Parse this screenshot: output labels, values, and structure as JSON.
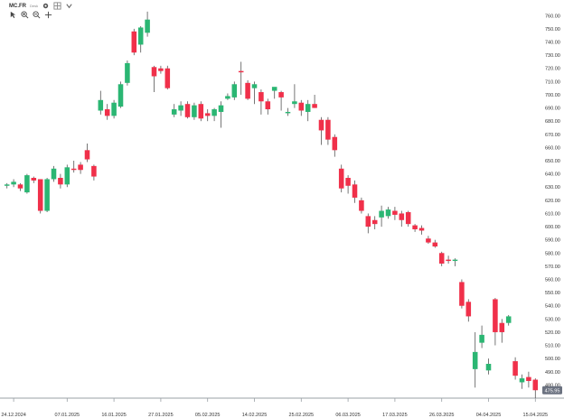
{
  "toolbar": {
    "symbol": "MC.FR",
    "sub_label": "Desk",
    "icons": [
      "cursor-icon",
      "zoom-in-icon",
      "zoom-out-icon",
      "crosshair-icon",
      "settings-icon",
      "grid-icon",
      "chevron-down-icon"
    ]
  },
  "chart_data": {
    "type": "candlestick",
    "ylim": [
      470,
      765
    ],
    "y_ticks": [
      480,
      490,
      500,
      510,
      520,
      530,
      540,
      550,
      560,
      570,
      580,
      590,
      600,
      610,
      620,
      630,
      640,
      650,
      660,
      670,
      680,
      690,
      700,
      710,
      720,
      730,
      740,
      750,
      760
    ],
    "x_ticks": [
      {
        "label": "24.12.2024",
        "index": 1
      },
      {
        "label": "07.01.2025",
        "index": 9
      },
      {
        "label": "16.01.2025",
        "index": 16
      },
      {
        "label": "27.01.2025",
        "index": 23
      },
      {
        "label": "05.02.2025",
        "index": 30
      },
      {
        "label": "14.02.2025",
        "index": 37
      },
      {
        "label": "25.02.2025",
        "index": 44
      },
      {
        "label": "06.03.2025",
        "index": 51
      },
      {
        "label": "17.03.2025",
        "index": 58
      },
      {
        "label": "26.03.2025",
        "index": 65
      },
      {
        "label": "04.04.2025",
        "index": 72
      },
      {
        "label": "15.04.2025",
        "index": 79
      }
    ],
    "last_price": {
      "value": 475.95,
      "label": "475.95"
    },
    "candles": [
      {
        "o": 631,
        "h": 633,
        "l": 629,
        "c": 632
      },
      {
        "o": 632,
        "h": 636,
        "l": 630,
        "c": 634
      },
      {
        "o": 632,
        "h": 633,
        "l": 627,
        "c": 629
      },
      {
        "o": 626,
        "h": 640,
        "l": 625,
        "c": 639
      },
      {
        "o": 637,
        "h": 638,
        "l": 633,
        "c": 635
      },
      {
        "o": 636,
        "h": 636,
        "l": 610,
        "c": 612
      },
      {
        "o": 612,
        "h": 637,
        "l": 611,
        "c": 636
      },
      {
        "o": 636,
        "h": 646,
        "l": 634,
        "c": 644
      },
      {
        "o": 637,
        "h": 640,
        "l": 629,
        "c": 632
      },
      {
        "o": 632,
        "h": 647,
        "l": 630,
        "c": 645
      },
      {
        "o": 644,
        "h": 650,
        "l": 641,
        "c": 643
      },
      {
        "o": 647,
        "h": 649,
        "l": 640,
        "c": 643
      },
      {
        "o": 658,
        "h": 663,
        "l": 649,
        "c": 651
      },
      {
        "o": 646,
        "h": 647,
        "l": 635,
        "c": 638
      },
      {
        "o": 688,
        "h": 703,
        "l": 685,
        "c": 696
      },
      {
        "o": 689,
        "h": 693,
        "l": 681,
        "c": 684
      },
      {
        "o": 684,
        "h": 696,
        "l": 682,
        "c": 694
      },
      {
        "o": 691,
        "h": 710,
        "l": 690,
        "c": 708
      },
      {
        "o": 709,
        "h": 726,
        "l": 707,
        "c": 724
      },
      {
        "o": 748,
        "h": 750,
        "l": 730,
        "c": 732
      },
      {
        "o": 738,
        "h": 752,
        "l": 732,
        "c": 751
      },
      {
        "o": 747,
        "h": 763,
        "l": 744,
        "c": 757
      },
      {
        "o": 721,
        "h": 722,
        "l": 702,
        "c": 714
      },
      {
        "o": 720,
        "h": 722,
        "l": 716,
        "c": 718
      },
      {
        "o": 720,
        "h": 722,
        "l": 704,
        "c": 705
      },
      {
        "o": 685,
        "h": 693,
        "l": 683,
        "c": 689
      },
      {
        "o": 688,
        "h": 695,
        "l": 684,
        "c": 692
      },
      {
        "o": 693,
        "h": 695,
        "l": 682,
        "c": 683
      },
      {
        "o": 683,
        "h": 694,
        "l": 681,
        "c": 692
      },
      {
        "o": 693,
        "h": 695,
        "l": 680,
        "c": 682
      },
      {
        "o": 686,
        "h": 689,
        "l": 680,
        "c": 684
      },
      {
        "o": 684,
        "h": 690,
        "l": 680,
        "c": 689
      },
      {
        "o": 687,
        "h": 695,
        "l": 675,
        "c": 692
      },
      {
        "o": 697,
        "h": 701,
        "l": 696,
        "c": 699
      },
      {
        "o": 698,
        "h": 710,
        "l": 696,
        "c": 708
      },
      {
        "o": 718,
        "h": 725,
        "l": 700,
        "c": 717
      },
      {
        "o": 709,
        "h": 711,
        "l": 696,
        "c": 697
      },
      {
        "o": 705,
        "h": 710,
        "l": 693,
        "c": 708
      },
      {
        "o": 702,
        "h": 704,
        "l": 685,
        "c": 695
      },
      {
        "o": 695,
        "h": 697,
        "l": 685,
        "c": 689
      },
      {
        "o": 703,
        "h": 705,
        "l": 697,
        "c": 706
      },
      {
        "o": 702,
        "h": 703,
        "l": 688,
        "c": 698
      },
      {
        "o": 686,
        "h": 690,
        "l": 684,
        "c": 687
      },
      {
        "o": 693,
        "h": 708,
        "l": 690,
        "c": 695
      },
      {
        "o": 694,
        "h": 696,
        "l": 684,
        "c": 688
      },
      {
        "o": 687,
        "h": 696,
        "l": 680,
        "c": 693
      },
      {
        "o": 693,
        "h": 700,
        "l": 690,
        "c": 690
      },
      {
        "o": 681,
        "h": 683,
        "l": 662,
        "c": 673
      },
      {
        "o": 681,
        "h": 683,
        "l": 662,
        "c": 666
      },
      {
        "o": 668,
        "h": 670,
        "l": 653,
        "c": 658
      },
      {
        "o": 644,
        "h": 647,
        "l": 626,
        "c": 629
      },
      {
        "o": 637,
        "h": 639,
        "l": 625,
        "c": 631
      },
      {
        "o": 632,
        "h": 635,
        "l": 618,
        "c": 622
      },
      {
        "o": 620,
        "h": 622,
        "l": 610,
        "c": 612
      },
      {
        "o": 608,
        "h": 610,
        "l": 595,
        "c": 600
      },
      {
        "o": 605,
        "h": 608,
        "l": 598,
        "c": 602
      },
      {
        "o": 607,
        "h": 616,
        "l": 600,
        "c": 612
      },
      {
        "o": 608,
        "h": 615,
        "l": 606,
        "c": 613
      },
      {
        "o": 612,
        "h": 615,
        "l": 605,
        "c": 609
      },
      {
        "o": 610,
        "h": 612,
        "l": 600,
        "c": 605
      },
      {
        "o": 611,
        "h": 612,
        "l": 600,
        "c": 602
      },
      {
        "o": 601,
        "h": 602,
        "l": 596,
        "c": 598
      },
      {
        "o": 599,
        "h": 601,
        "l": 594,
        "c": 597
      },
      {
        "o": 591,
        "h": 593,
        "l": 587,
        "c": 588
      },
      {
        "o": 588,
        "h": 590,
        "l": 584,
        "c": 585
      },
      {
        "o": 580,
        "h": 581,
        "l": 570,
        "c": 572
      },
      {
        "o": 575,
        "h": 578,
        "l": 572,
        "c": 574
      },
      {
        "o": 574,
        "h": 576,
        "l": 570,
        "c": 575
      },
      {
        "o": 558,
        "h": 560,
        "l": 538,
        "c": 540
      },
      {
        "o": 543,
        "h": 545,
        "l": 528,
        "c": 532
      },
      {
        "o": 492,
        "h": 520,
        "l": 478,
        "c": 505
      },
      {
        "o": 512,
        "h": 525,
        "l": 508,
        "c": 518
      },
      {
        "o": 491,
        "h": 500,
        "l": 488,
        "c": 496
      },
      {
        "o": 545,
        "h": 546,
        "l": 510,
        "c": 520
      },
      {
        "o": 527,
        "h": 530,
        "l": 512,
        "c": 520
      },
      {
        "o": 527,
        "h": 533,
        "l": 525,
        "c": 532
      },
      {
        "o": 498,
        "h": 501,
        "l": 484,
        "c": 487
      },
      {
        "o": 482,
        "h": 488,
        "l": 477,
        "c": 485
      },
      {
        "o": 486,
        "h": 490,
        "l": 478,
        "c": 483
      },
      {
        "o": 484,
        "h": 485,
        "l": 470,
        "c": 476
      }
    ],
    "up_color": "#2bb673",
    "down_color": "#f0304a"
  }
}
